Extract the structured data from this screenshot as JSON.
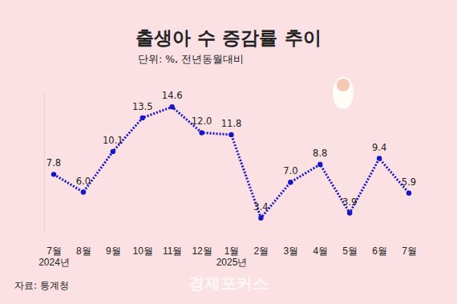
{
  "chart_data": {
    "type": "line",
    "title": "출생아 수 증감률 추이",
    "subtitle": "단위: %, 전년동월대비",
    "source": "자료: 통계청",
    "watermark": "경제포커스",
    "categories": [
      "7월\n2024년",
      "8월",
      "9월",
      "10월",
      "11월",
      "12월",
      "1월\n2025년",
      "2월",
      "3월",
      "4월",
      "5월",
      "6월",
      "7월"
    ],
    "values": [
      7.8,
      6.0,
      10.1,
      13.5,
      14.6,
      12.0,
      11.8,
      3.4,
      7.0,
      8.8,
      3.9,
      9.4,
      5.9
    ],
    "value_labels": [
      "7.8",
      "6.0",
      "10.1",
      "13.5",
      "14.6",
      "12.0",
      "11.8",
      "3.4",
      "7.0",
      "8.8",
      "3.9",
      "9.4",
      "5.9"
    ],
    "color": "#1616c8",
    "line_style": "dotted",
    "marker": "circle",
    "data_labels": true,
    "ylim": [
      2,
      16
    ],
    "yticks": [],
    "tick_labels": "x",
    "grid": false
  }
}
